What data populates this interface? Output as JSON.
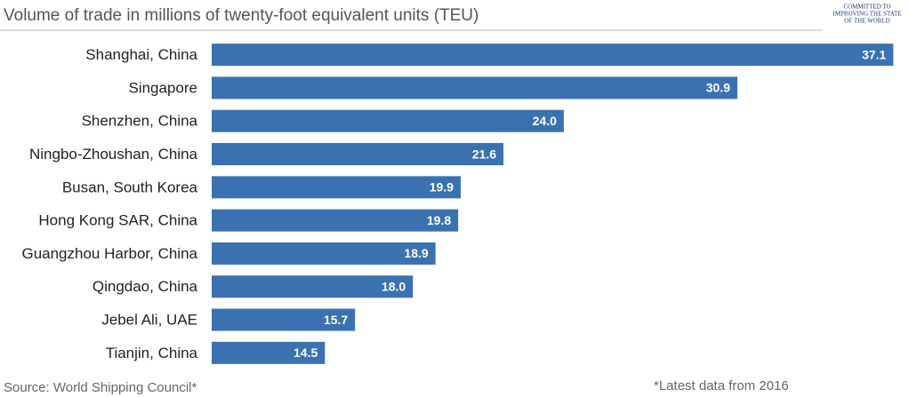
{
  "chart_data": {
    "type": "hbar",
    "subtitle": "Volume of trade in millions of twenty-foot equivalent units (TEU)",
    "logo": [
      "COMMITTED TO",
      "IMPROVING THE STATE",
      "OF THE WORLD"
    ],
    "categories": [
      "Shanghai, China",
      "Singapore",
      "Shenzhen, China",
      "Ningbo-Zhoushan, China",
      "Busan, South Korea",
      "Hong Kong SAR, China",
      "Guangzhou Harbor, China",
      "Qingdao, China",
      "Jebel Ali, UAE",
      "Tianjin, China"
    ],
    "values": [
      37.1,
      30.9,
      24,
      21.6,
      19.9,
      19.8,
      18.9,
      18,
      15.7,
      14.5
    ],
    "value_labels": [
      "37.1",
      "30.9",
      "24.0",
      "21.6",
      "19.9",
      "19.8",
      "18.9",
      "18.0",
      "15.7",
      "14.5"
    ],
    "color": "#3a72b1",
    "xlim": [
      10,
      37.3
    ],
    "source": "Source: World Shipping Council*",
    "note": "*Latest data from 2016"
  }
}
